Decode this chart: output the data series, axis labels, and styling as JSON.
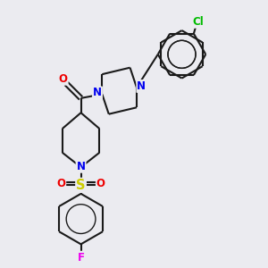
{
  "bg_color": "#ebebf0",
  "bond_color": "#1a1a1a",
  "bond_width": 1.5,
  "atom_colors": {
    "N": "#0000ee",
    "O": "#ee0000",
    "S": "#cccc00",
    "Cl": "#00bb00",
    "F": "#ee00ee",
    "C": "#1a1a1a"
  },
  "font_size": 8.5,
  "fig_size": [
    3.0,
    3.0
  ],
  "dpi": 100
}
